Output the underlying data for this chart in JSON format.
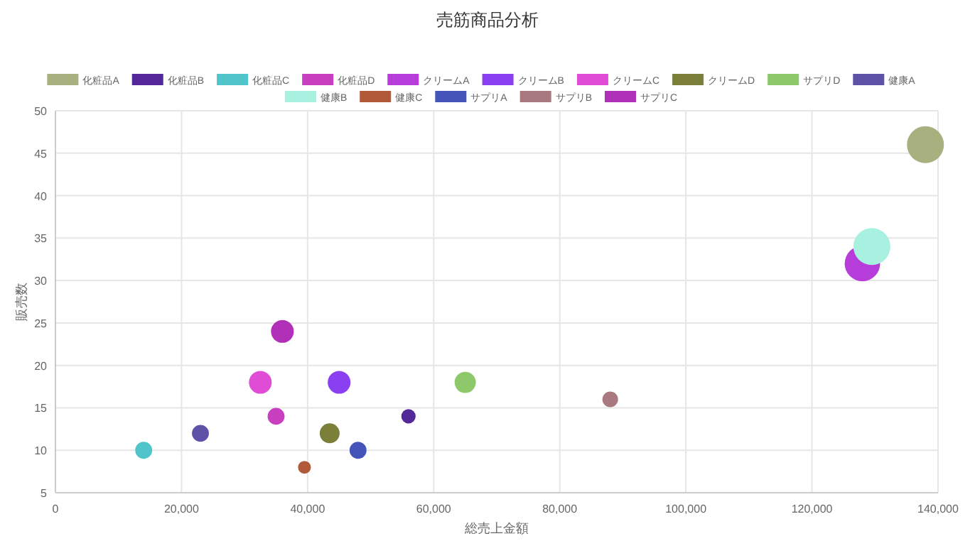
{
  "chart_data": {
    "type": "bubble",
    "title": "売筋商品分析",
    "xlabel": "総売上金額",
    "ylabel": "販売数",
    "xlim": [
      0,
      140000
    ],
    "xticks": [
      0,
      {
        "value": 20000,
        "label": "20,000"
      },
      {
        "value": 40000,
        "label": "40,000"
      },
      {
        "value": 60000,
        "label": "60,000"
      },
      {
        "value": 80000,
        "label": "80,000"
      },
      {
        "value": 100000,
        "label": "100,000"
      },
      {
        "value": 120000,
        "label": "120,000"
      },
      {
        "value": 140000,
        "label": "140,000"
      }
    ],
    "ylim": [
      5,
      50
    ],
    "yticks": [
      5,
      10,
      15,
      20,
      25,
      30,
      35,
      40,
      45,
      50
    ],
    "grid": true,
    "legend": "top",
    "series": [
      {
        "name": "化粧品A",
        "color": "#a8b07f",
        "x": [
          138000
        ],
        "values": [
          46
        ],
        "sizes": [
          1
        ]
      },
      {
        "name": "化粧品B",
        "color": "#55289a",
        "x": [
          56000
        ],
        "values": [
          14
        ],
        "sizes": [
          0.15
        ]
      },
      {
        "name": "化粧品C",
        "color": "#4fc4c9",
        "x": [
          14000
        ],
        "values": [
          10
        ],
        "sizes": [
          0.21
        ]
      },
      {
        "name": "化粧品D",
        "color": "#c83fbf",
        "x": [
          35000
        ],
        "values": [
          14
        ],
        "sizes": [
          0.21
        ]
      },
      {
        "name": "クリームA",
        "color": "#b73ddb",
        "x": [
          128000
        ],
        "values": [
          32
        ],
        "sizes": [
          0.92
        ]
      },
      {
        "name": "クリームB",
        "color": "#8a3ff0",
        "x": [
          45000
        ],
        "values": [
          18
        ],
        "sizes": [
          0.38
        ]
      },
      {
        "name": "クリームC",
        "color": "#e04cd6",
        "x": [
          32500
        ],
        "values": [
          18
        ],
        "sizes": [
          0.38
        ]
      },
      {
        "name": "クリームD",
        "color": "#7b7f3a",
        "x": [
          43500
        ],
        "values": [
          12
        ],
        "sizes": [
          0.29
        ]
      },
      {
        "name": "サプリD",
        "color": "#8dc96a",
        "x": [
          65000
        ],
        "values": [
          18
        ],
        "sizes": [
          0.33
        ]
      },
      {
        "name": "健康A",
        "color": "#5e52a8",
        "x": [
          23000
        ],
        "values": [
          12
        ],
        "sizes": [
          0.21
        ]
      },
      {
        "name": "健康B",
        "color": "#a8f0e0",
        "x": [
          129500
        ],
        "values": [
          34
        ],
        "sizes": [
          1
        ]
      },
      {
        "name": "健康C",
        "color": "#b05a3a",
        "x": [
          39500
        ],
        "values": [
          8
        ],
        "sizes": [
          0.12
        ]
      },
      {
        "name": "サプリA",
        "color": "#4454b8",
        "x": [
          48000
        ],
        "values": [
          10
        ],
        "sizes": [
          0.21
        ]
      },
      {
        "name": "サプリB",
        "color": "#a87a80",
        "x": [
          88000
        ],
        "values": [
          16
        ],
        "sizes": [
          0.18
        ]
      },
      {
        "name": "サプリC",
        "color": "#b030b8",
        "x": [
          36000
        ],
        "values": [
          24
        ],
        "sizes": [
          0.38
        ]
      }
    ]
  }
}
